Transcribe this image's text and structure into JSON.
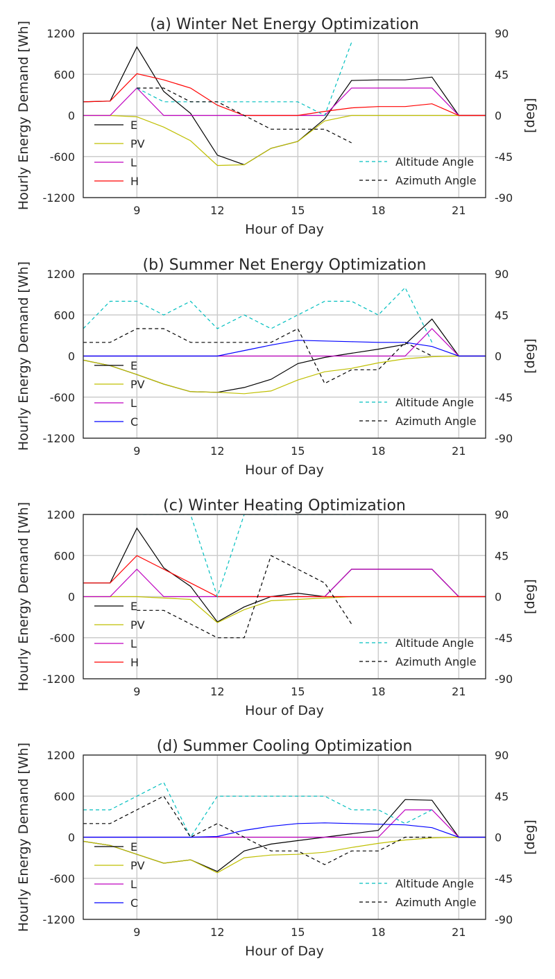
{
  "chart_data": [
    {
      "type": "line",
      "title": "(a) Winter Net Energy Optimization",
      "xlabel": "Hour of Day",
      "ylabel": "Hourly Energy Demand [Wh]",
      "y2label": "[deg]",
      "xlim": [
        7,
        22
      ],
      "ylim": [
        -1200,
        1200
      ],
      "y2lim": [
        -90,
        90
      ],
      "xticks": [
        9,
        12,
        15,
        18,
        21
      ],
      "yticks": [
        -1200,
        -600,
        0,
        600,
        1200
      ],
      "y2ticks": [
        -90,
        -45,
        0,
        45,
        90
      ],
      "grid": true,
      "legend_left": "lower-left",
      "legend_right": "lower-right",
      "series": [
        {
          "name": "E",
          "axis": "left",
          "color": "#000000",
          "style": "solid",
          "x": [
            7,
            8,
            9,
            10,
            11,
            12,
            13,
            14,
            15,
            16,
            17,
            18,
            19,
            20,
            21,
            22
          ],
          "values": [
            200,
            210,
            1000,
            350,
            30,
            -580,
            -720,
            -480,
            -380,
            -50,
            510,
            520,
            520,
            560,
            0,
            0
          ]
        },
        {
          "name": "PV",
          "axis": "left",
          "color": "#bfbf00",
          "style": "solid",
          "x": [
            7,
            8,
            9,
            10,
            11,
            12,
            13,
            14,
            15,
            16,
            17,
            18,
            19,
            20,
            21,
            22
          ],
          "values": [
            0,
            0,
            -20,
            -170,
            -370,
            -730,
            -720,
            -480,
            -380,
            -80,
            0,
            0,
            0,
            0,
            0,
            0
          ]
        },
        {
          "name": "L",
          "axis": "left",
          "color": "#bf00bf",
          "style": "solid",
          "x": [
            7,
            8,
            9,
            10,
            11,
            12,
            13,
            14,
            15,
            16,
            17,
            18,
            19,
            20,
            21,
            22
          ],
          "values": [
            0,
            0,
            400,
            0,
            0,
            0,
            0,
            0,
            0,
            0,
            400,
            400,
            400,
            400,
            0,
            0
          ]
        },
        {
          "name": "H",
          "axis": "left",
          "color": "#ff0000",
          "style": "solid",
          "x": [
            7,
            8,
            9,
            10,
            11,
            12,
            13,
            14,
            15,
            16,
            17,
            18,
            19,
            20,
            21,
            22
          ],
          "values": [
            200,
            210,
            610,
            520,
            400,
            150,
            0,
            0,
            0,
            60,
            110,
            130,
            130,
            170,
            0,
            0
          ]
        },
        {
          "name": "Altitude Angle",
          "axis": "right",
          "color": "#00bfbf",
          "style": "dashed",
          "x": [
            9,
            10,
            11,
            12,
            13,
            14,
            15,
            16,
            17
          ],
          "values": [
            30,
            15,
            15,
            15,
            15,
            15,
            15,
            0,
            80
          ]
        },
        {
          "name": "Azimuth Angle",
          "axis": "right",
          "color": "#000000",
          "style": "dashed",
          "x": [
            9,
            10,
            11,
            12,
            13,
            14,
            15,
            16,
            17
          ],
          "values": [
            30,
            30,
            15,
            15,
            0,
            -15,
            -15,
            -15,
            -30
          ]
        }
      ]
    },
    {
      "type": "line",
      "title": "(b) Summer Net Energy Optimization",
      "xlabel": "Hour of Day",
      "ylabel": "Hourly Energy Demand [Wh]",
      "y2label": "[deg]",
      "xlim": [
        7,
        22
      ],
      "ylim": [
        -1200,
        1200
      ],
      "y2lim": [
        -90,
        90
      ],
      "xticks": [
        9,
        12,
        15,
        18,
        21
      ],
      "yticks": [
        -1200,
        -600,
        0,
        600,
        1200
      ],
      "y2ticks": [
        -90,
        -45,
        0,
        45,
        90
      ],
      "grid": true,
      "legend_left": "lower-left",
      "legend_right": "lower-right",
      "series": [
        {
          "name": "E",
          "axis": "left",
          "color": "#000000",
          "style": "solid",
          "x": [
            7,
            8,
            9,
            10,
            11,
            12,
            13,
            14,
            15,
            16,
            17,
            18,
            19,
            20,
            21,
            22
          ],
          "values": [
            -60,
            -140,
            -270,
            -410,
            -520,
            -530,
            -460,
            -340,
            -110,
            -20,
            40,
            100,
            170,
            540,
            0,
            0
          ]
        },
        {
          "name": "PV",
          "axis": "left",
          "color": "#bfbf00",
          "style": "solid",
          "x": [
            7,
            8,
            9,
            10,
            11,
            12,
            13,
            14,
            15,
            16,
            17,
            18,
            19,
            20,
            21,
            22
          ],
          "values": [
            -60,
            -140,
            -270,
            -410,
            -520,
            -530,
            -550,
            -510,
            -350,
            -230,
            -180,
            -100,
            -40,
            -10,
            0,
            0
          ]
        },
        {
          "name": "L",
          "axis": "left",
          "color": "#bf00bf",
          "style": "solid",
          "x": [
            7,
            8,
            9,
            10,
            11,
            12,
            13,
            14,
            15,
            16,
            17,
            18,
            19,
            20,
            21,
            22
          ],
          "values": [
            0,
            0,
            0,
            0,
            0,
            0,
            0,
            0,
            0,
            0,
            0,
            0,
            0,
            400,
            0,
            0
          ]
        },
        {
          "name": "C",
          "axis": "left",
          "color": "#0000ff",
          "style": "solid",
          "x": [
            7,
            8,
            9,
            10,
            11,
            12,
            13,
            14,
            15,
            16,
            17,
            18,
            19,
            20,
            21,
            22
          ],
          "values": [
            0,
            0,
            0,
            0,
            0,
            0,
            80,
            160,
            230,
            220,
            210,
            200,
            200,
            140,
            0,
            0
          ]
        },
        {
          "name": "Altitude Angle",
          "axis": "right",
          "color": "#00bfbf",
          "style": "dashed",
          "x": [
            7,
            8,
            9,
            10,
            11,
            12,
            13,
            14,
            15,
            16,
            17,
            18,
            19,
            20
          ],
          "values": [
            30,
            60,
            60,
            45,
            60,
            30,
            45,
            30,
            45,
            60,
            60,
            45,
            75,
            15
          ]
        },
        {
          "name": "Azimuth Angle",
          "axis": "right",
          "color": "#000000",
          "style": "dashed",
          "x": [
            7,
            8,
            9,
            10,
            11,
            12,
            13,
            14,
            15,
            16,
            17,
            18,
            19,
            20
          ],
          "values": [
            15,
            15,
            30,
            30,
            15,
            15,
            15,
            15,
            30,
            -30,
            -15,
            -15,
            15,
            0
          ]
        }
      ]
    },
    {
      "type": "line",
      "title": "(c) Winter Heating Optimization",
      "xlabel": "Hour of Day",
      "ylabel": "Hourly Energy Demand [Wh]",
      "y2label": "[deg]",
      "xlim": [
        7,
        22
      ],
      "ylim": [
        -1200,
        1200
      ],
      "y2lim": [
        -90,
        90
      ],
      "xticks": [
        9,
        12,
        15,
        18,
        21
      ],
      "yticks": [
        -1200,
        -600,
        0,
        600,
        1200
      ],
      "y2ticks": [
        -90,
        -45,
        0,
        45,
        90
      ],
      "grid": true,
      "legend_left": "lower-left",
      "legend_right": "lower-right",
      "series": [
        {
          "name": "E",
          "axis": "left",
          "color": "#000000",
          "style": "solid",
          "x": [
            7,
            8,
            9,
            10,
            11,
            12,
            13,
            14,
            15,
            16,
            17,
            18,
            19,
            20,
            21,
            22
          ],
          "values": [
            200,
            200,
            1000,
            420,
            150,
            -370,
            -150,
            0,
            50,
            0,
            400,
            400,
            400,
            400,
            0,
            0
          ]
        },
        {
          "name": "PV",
          "axis": "left",
          "color": "#bfbf00",
          "style": "solid",
          "x": [
            7,
            8,
            9,
            10,
            11,
            12,
            13,
            14,
            15,
            16,
            17,
            18,
            19,
            20,
            21,
            22
          ],
          "values": [
            0,
            0,
            0,
            -20,
            -40,
            -380,
            -190,
            -60,
            -40,
            -20,
            0,
            0,
            0,
            0,
            0,
            0
          ]
        },
        {
          "name": "L",
          "axis": "left",
          "color": "#bf00bf",
          "style": "solid",
          "x": [
            7,
            8,
            9,
            10,
            11,
            12,
            13,
            14,
            15,
            16,
            17,
            18,
            19,
            20,
            21,
            22
          ],
          "values": [
            0,
            0,
            400,
            0,
            0,
            0,
            0,
            0,
            0,
            0,
            400,
            400,
            400,
            400,
            0,
            0
          ]
        },
        {
          "name": "H",
          "axis": "left",
          "color": "#ff0000",
          "style": "solid",
          "x": [
            7,
            8,
            9,
            10,
            11,
            12,
            13,
            14,
            15,
            16,
            17,
            18,
            19,
            20,
            21,
            22
          ],
          "values": [
            200,
            200,
            600,
            400,
            200,
            0,
            0,
            0,
            0,
            0,
            0,
            0,
            0,
            0,
            0,
            0
          ]
        },
        {
          "name": "Altitude Angle",
          "axis": "right",
          "color": "#00bfbf",
          "style": "dashed",
          "x": [
            9,
            10,
            11,
            12,
            13,
            14,
            15,
            16,
            17
          ],
          "values": [
            90,
            90,
            90,
            0,
            90,
            90,
            90,
            90,
            90
          ]
        },
        {
          "name": "Azimuth Angle",
          "axis": "right",
          "color": "#000000",
          "style": "dashed",
          "x": [
            9,
            10,
            11,
            12,
            13,
            14,
            15,
            16,
            17
          ],
          "values": [
            -15,
            -15,
            -30,
            -45,
            -45,
            45,
            30,
            15,
            -30
          ]
        }
      ]
    },
    {
      "type": "line",
      "title": "(d) Summer Cooling Optimization",
      "xlabel": "Hour of Day",
      "ylabel": "Hourly Energy Demand [Wh]",
      "y2label": "[deg]",
      "xlim": [
        7,
        22
      ],
      "ylim": [
        -1200,
        1200
      ],
      "y2lim": [
        -90,
        90
      ],
      "xticks": [
        9,
        12,
        15,
        18,
        21
      ],
      "yticks": [
        -1200,
        -600,
        0,
        600,
        1200
      ],
      "y2ticks": [
        -90,
        -45,
        0,
        45,
        90
      ],
      "grid": true,
      "legend_left": "lower-left",
      "legend_right": "lower-right",
      "series": [
        {
          "name": "E",
          "axis": "left",
          "color": "#000000",
          "style": "solid",
          "x": [
            7,
            8,
            9,
            10,
            11,
            12,
            13,
            14,
            15,
            16,
            17,
            18,
            19,
            20,
            21,
            22
          ],
          "values": [
            -60,
            -120,
            -250,
            -380,
            -330,
            -500,
            -200,
            -100,
            -50,
            0,
            50,
            100,
            550,
            540,
            0,
            0
          ]
        },
        {
          "name": "PV",
          "axis": "left",
          "color": "#bfbf00",
          "style": "solid",
          "x": [
            7,
            8,
            9,
            10,
            11,
            12,
            13,
            14,
            15,
            16,
            17,
            18,
            19,
            20,
            21,
            22
          ],
          "values": [
            -60,
            -120,
            -250,
            -380,
            -330,
            -520,
            -300,
            -260,
            -250,
            -220,
            -150,
            -90,
            -40,
            -10,
            0,
            0
          ]
        },
        {
          "name": "L",
          "axis": "left",
          "color": "#bf00bf",
          "style": "solid",
          "x": [
            7,
            8,
            9,
            10,
            11,
            12,
            13,
            14,
            15,
            16,
            17,
            18,
            19,
            20,
            21,
            22
          ],
          "values": [
            0,
            0,
            0,
            0,
            0,
            0,
            0,
            0,
            0,
            0,
            0,
            0,
            400,
            400,
            0,
            0
          ]
        },
        {
          "name": "C",
          "axis": "left",
          "color": "#0000ff",
          "style": "solid",
          "x": [
            7,
            8,
            9,
            10,
            11,
            12,
            13,
            14,
            15,
            16,
            17,
            18,
            19,
            20,
            21,
            22
          ],
          "values": [
            0,
            0,
            0,
            0,
            0,
            10,
            100,
            160,
            200,
            210,
            200,
            190,
            180,
            140,
            0,
            0
          ]
        },
        {
          "name": "Altitude Angle",
          "axis": "right",
          "color": "#00bfbf",
          "style": "dashed",
          "x": [
            7,
            8,
            9,
            10,
            11,
            12,
            13,
            14,
            15,
            16,
            17,
            18,
            19,
            20
          ],
          "values": [
            30,
            30,
            45,
            60,
            0,
            45,
            45,
            45,
            45,
            45,
            30,
            30,
            15,
            30
          ]
        },
        {
          "name": "Azimuth Angle",
          "axis": "right",
          "color": "#000000",
          "style": "dashed",
          "x": [
            7,
            8,
            9,
            10,
            11,
            12,
            13,
            14,
            15,
            16,
            17,
            18,
            19,
            20
          ],
          "values": [
            15,
            15,
            30,
            45,
            0,
            15,
            0,
            -15,
            -15,
            -30,
            -15,
            -15,
            0,
            0
          ]
        }
      ]
    }
  ]
}
